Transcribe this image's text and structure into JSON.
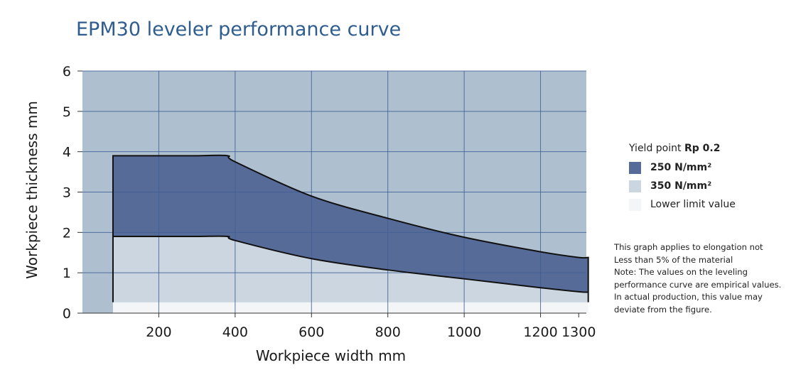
{
  "chart_data": {
    "type": "area",
    "title": "EPM30 leveler performance curve",
    "xlabel": "Workpiece width mm",
    "ylabel": "Workpiece thickness mm",
    "xlim": [
      0,
      1320
    ],
    "ylim": [
      0,
      6
    ],
    "x_ticks": [
      "200",
      "400",
      "600",
      "800",
      "1000",
      "1200",
      "1300"
    ],
    "y_ticks": [
      "0",
      "1",
      "2",
      "3",
      "4",
      "5",
      "6"
    ],
    "grid": true,
    "legend_title": "Yield point",
    "legend_title_bold": "Rp 0.2",
    "series": [
      {
        "name": "250 N/mm²",
        "color": "#566b97",
        "x": [
          80,
          100,
          200,
          300,
          380,
          400,
          600,
          800,
          1000,
          1200,
          1300,
          1325
        ],
        "values": [
          3.9,
          3.9,
          3.9,
          3.9,
          3.9,
          3.75,
          2.9,
          2.35,
          1.88,
          1.52,
          1.38,
          1.38
        ]
      },
      {
        "name": "350 N/mm²",
        "color": "#ccd6e0",
        "x": [
          80,
          100,
          200,
          300,
          380,
          400,
          600,
          800,
          1000,
          1200,
          1300,
          1325
        ],
        "values": [
          1.9,
          1.9,
          1.9,
          1.9,
          1.9,
          1.8,
          1.35,
          1.07,
          0.85,
          0.63,
          0.53,
          0.52
        ]
      },
      {
        "name": "Lower limit value",
        "color": "#f3f5f7",
        "x": [
          80,
          1325
        ],
        "values": [
          0.27,
          0.27
        ]
      }
    ],
    "background_region_color": "#aec0d0",
    "legend_position": "right"
  },
  "notes": [
    "This graph applies to elongation not",
    "Less than 5% of the material",
    "Note: The values on the leveling",
    "performance curve are empirical values.",
    "In actual production, this value may",
    "deviate from the figure."
  ]
}
